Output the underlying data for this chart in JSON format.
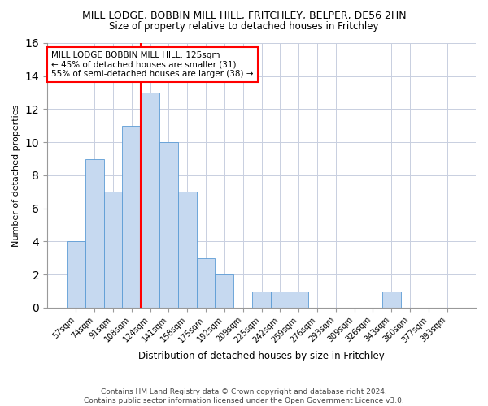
{
  "title1": "MILL LODGE, BOBBIN MILL HILL, FRITCHLEY, BELPER, DE56 2HN",
  "title2": "Size of property relative to detached houses in Fritchley",
  "xlabel": "Distribution of detached houses by size in Fritchley",
  "ylabel": "Number of detached properties",
  "categories": [
    "57sqm",
    "74sqm",
    "91sqm",
    "108sqm",
    "124sqm",
    "141sqm",
    "158sqm",
    "175sqm",
    "192sqm",
    "209sqm",
    "225sqm",
    "242sqm",
    "259sqm",
    "276sqm",
    "293sqm",
    "309sqm",
    "326sqm",
    "343sqm",
    "360sqm",
    "377sqm",
    "393sqm"
  ],
  "values": [
    4,
    9,
    7,
    11,
    13,
    10,
    7,
    3,
    2,
    0,
    1,
    1,
    1,
    0,
    0,
    0,
    0,
    1,
    0,
    0,
    0
  ],
  "bar_color": "#c6d9f0",
  "bar_edge_color": "#5b9bd5",
  "red_line_index": 4,
  "annotation_text": "MILL LODGE BOBBIN MILL HILL: 125sqm\n← 45% of detached houses are smaller (31)\n55% of semi-detached houses are larger (38) →",
  "footnote": "Contains HM Land Registry data © Crown copyright and database right 2024.\nContains public sector information licensed under the Open Government Licence v3.0.",
  "ylim": [
    0,
    16
  ],
  "yticks": [
    0,
    2,
    4,
    6,
    8,
    10,
    12,
    14,
    16
  ],
  "background_color": "#ffffff",
  "grid_color": "#c8cfe0"
}
